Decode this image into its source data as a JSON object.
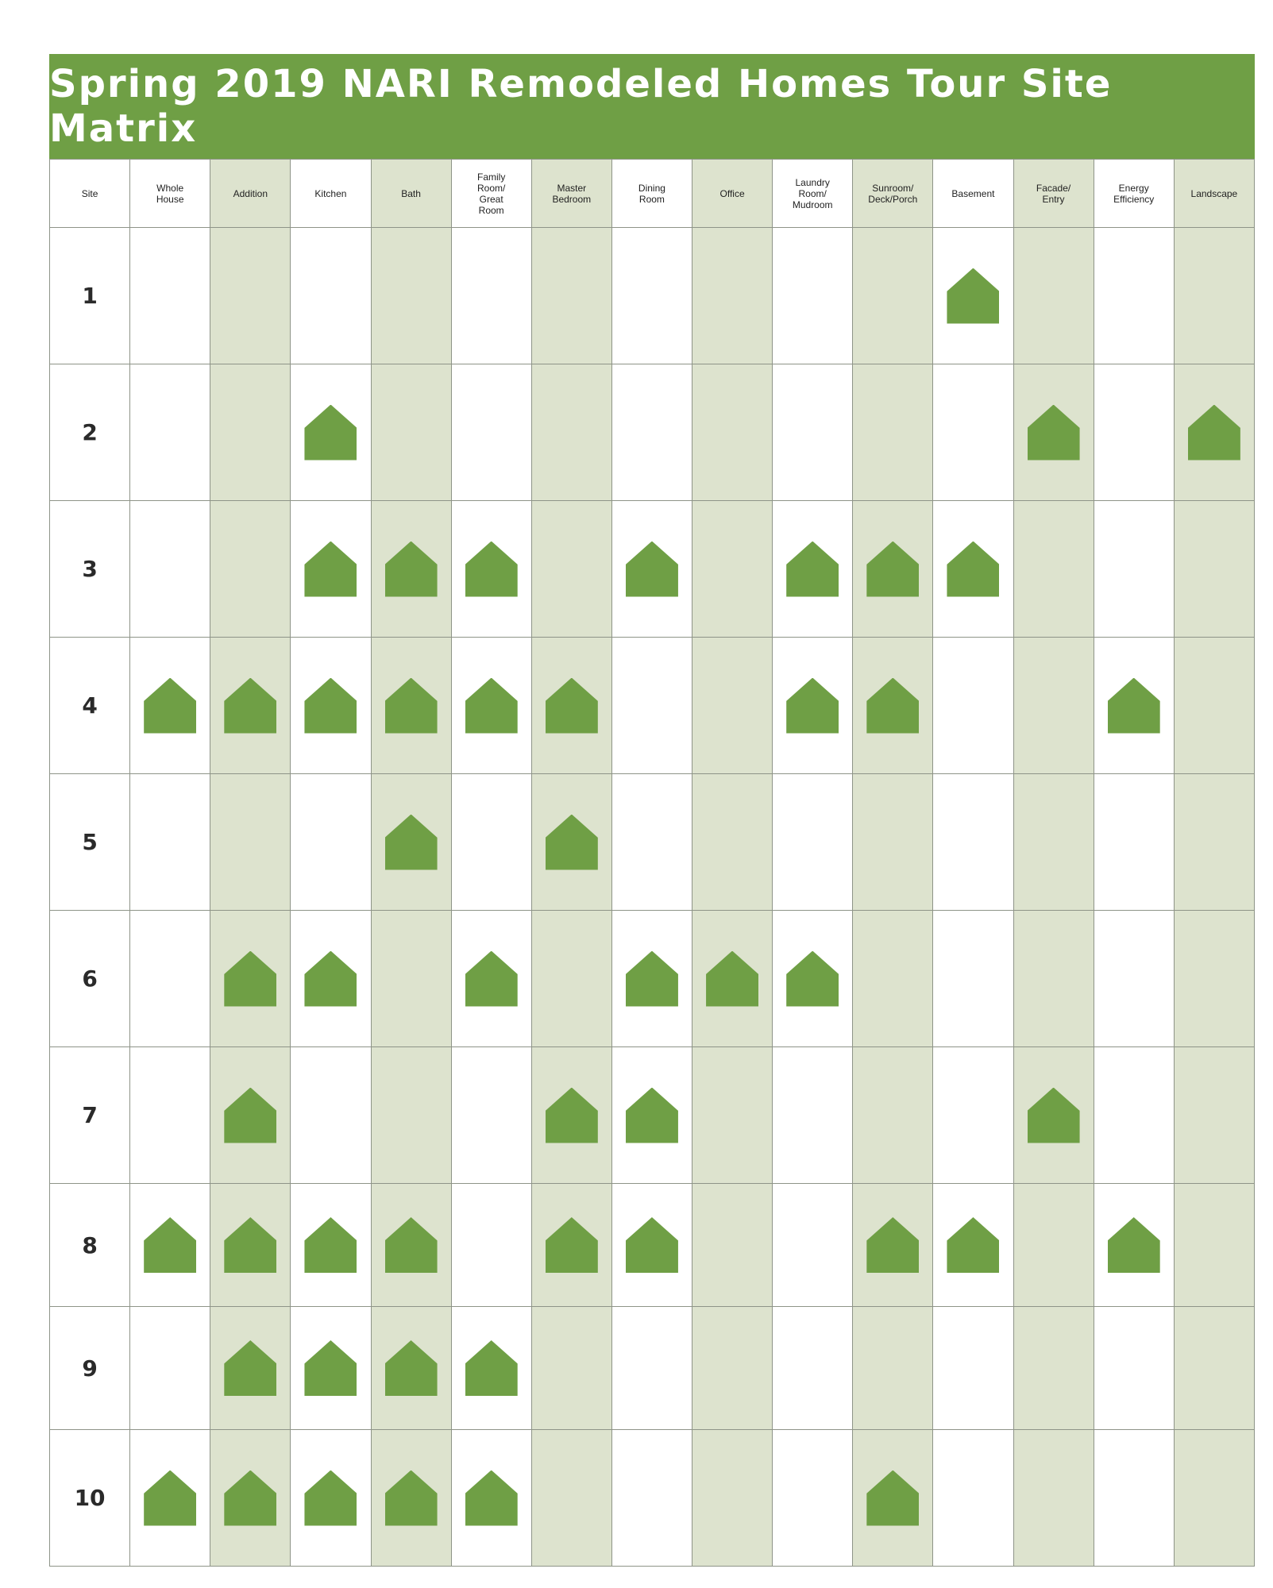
{
  "title": "Spring 2019 NARI Remodeled Homes Tour Site Matrix",
  "columns": [
    "Site",
    "Whole\nHouse",
    "Addition",
    "Kitchen",
    "Bath",
    "Family\nRoom/\nGreat\nRoom",
    "Master\nBedroom",
    "Dining\nRoom",
    "Office",
    "Laundry\nRoom/\nMudroom",
    "Sunroom/\nDeck/Porch",
    "Basement",
    "Facade/\nEntry",
    "Energy\nEfficiency",
    "Landscape"
  ],
  "rows": [
    {
      "site": "1",
      "marks": [
        0,
        0,
        0,
        0,
        0,
        0,
        0,
        0,
        0,
        0,
        1,
        0,
        0,
        0
      ]
    },
    {
      "site": "2",
      "marks": [
        0,
        0,
        1,
        0,
        0,
        0,
        0,
        0,
        0,
        0,
        0,
        1,
        0,
        1
      ]
    },
    {
      "site": "3",
      "marks": [
        0,
        0,
        1,
        1,
        1,
        0,
        1,
        0,
        1,
        1,
        1,
        0,
        0,
        0
      ]
    },
    {
      "site": "4",
      "marks": [
        1,
        1,
        1,
        1,
        1,
        1,
        0,
        0,
        1,
        1,
        0,
        0,
        1,
        0
      ]
    },
    {
      "site": "5",
      "marks": [
        0,
        0,
        0,
        1,
        0,
        1,
        0,
        0,
        0,
        0,
        0,
        0,
        0,
        0
      ]
    },
    {
      "site": "6",
      "marks": [
        0,
        1,
        1,
        0,
        1,
        0,
        1,
        1,
        1,
        0,
        0,
        0,
        0,
        0
      ]
    },
    {
      "site": "7",
      "marks": [
        0,
        1,
        0,
        0,
        0,
        1,
        1,
        0,
        0,
        0,
        0,
        1,
        0,
        0
      ]
    },
    {
      "site": "8",
      "marks": [
        1,
        1,
        1,
        1,
        0,
        1,
        1,
        0,
        0,
        1,
        1,
        0,
        1,
        0
      ]
    },
    {
      "site": "9",
      "marks": [
        0,
        1,
        1,
        1,
        1,
        0,
        0,
        0,
        0,
        0,
        0,
        0,
        0,
        0
      ]
    },
    {
      "site": "10",
      "marks": [
        1,
        1,
        1,
        1,
        1,
        0,
        0,
        0,
        0,
        1,
        0,
        0,
        0,
        0
      ]
    }
  ],
  "colors": {
    "accent_green": "#6f9f45",
    "shaded_column": "#dde3ce",
    "gridline": "#8e9488"
  },
  "icon_name": "house-icon"
}
